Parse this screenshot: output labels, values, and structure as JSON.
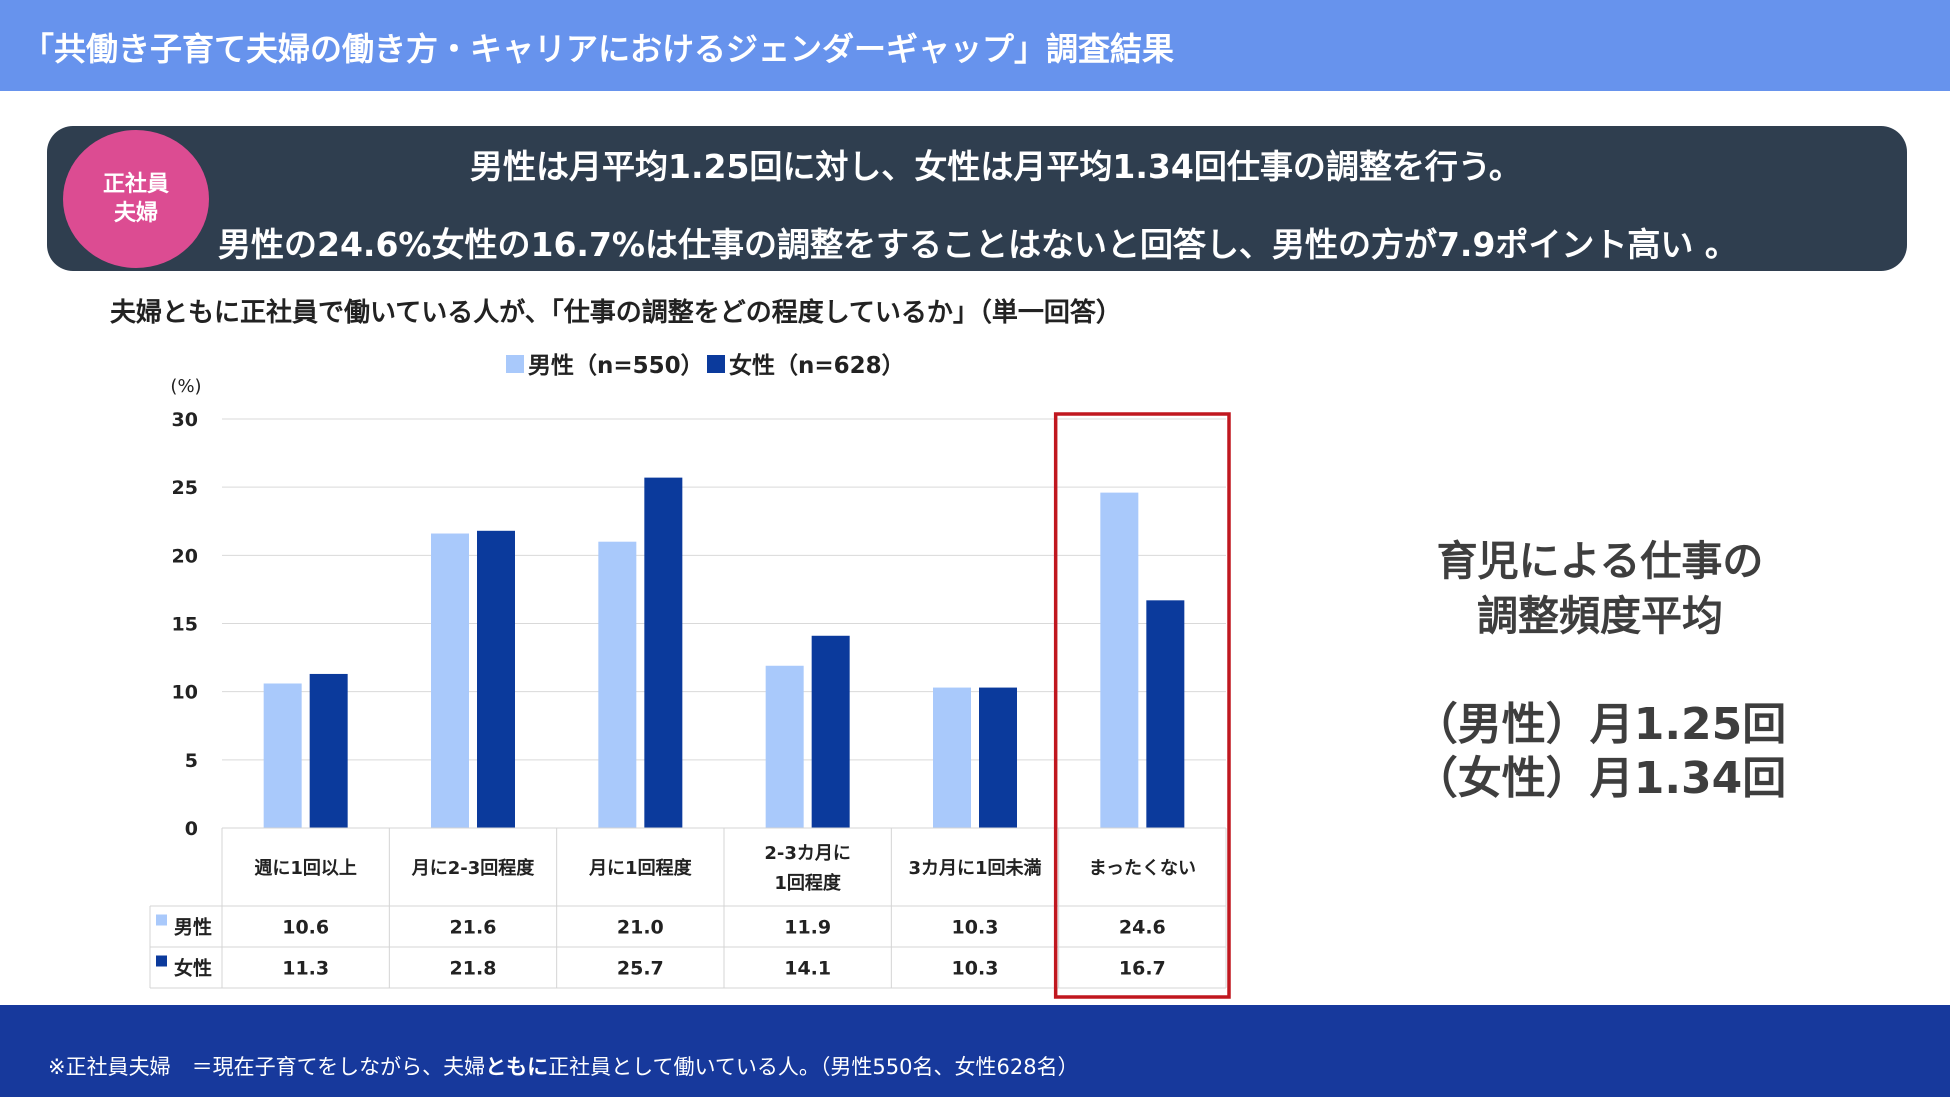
{
  "header": {
    "title": "「共働き子育て夫婦の働き方・キャリアにおけるジェンダーギャップ」調査結果"
  },
  "banner": {
    "badge_line1": "正社員",
    "badge_line2": "夫婦",
    "line1": "男性は月平均1.25回に対し、女性は月平均1.34回仕事の調整を行う。",
    "line2": "男性の24.6%女性の16.7%は仕事の調整をすることはないと回答し、男性の方が7.9ポイント高い 。"
  },
  "chart_subtitle": "夫婦ともに正社員で働いている人が、「仕事の調整をどの程度しているか」（単一回答）",
  "chart_data": {
    "type": "bar",
    "unit_label": "(%)",
    "categories": [
      "週に1回以上",
      "月に2-3回程度",
      "月に1回程度",
      "2-3カ月に\n1回程度",
      "3カ月に1回未満",
      "まったくない"
    ],
    "series": [
      {
        "name": "男性",
        "legend": "男性（n=550）",
        "color": "#a9c9fb",
        "values": [
          10.6,
          21.6,
          21.0,
          11.9,
          10.3,
          24.6
        ]
      },
      {
        "name": "女性",
        "legend": "女性（n=628）",
        "color": "#0b3a9c",
        "values": [
          11.3,
          21.8,
          25.7,
          14.1,
          10.3,
          16.7
        ]
      }
    ],
    "value_labels": [
      [
        "10.6",
        "21.6",
        "21.0",
        "11.9",
        "10.3",
        "24.6"
      ],
      [
        "11.3",
        "21.8",
        "25.7",
        "14.1",
        "10.3",
        "16.7"
      ]
    ],
    "ylim": [
      0,
      30
    ],
    "yticks": [
      0,
      5,
      10,
      15,
      20,
      25,
      30
    ],
    "grid": true,
    "data_table": true,
    "highlighted_category": "まったくない",
    "highlight_color": "#c0171f"
  },
  "side_panel": {
    "heading_line1": "育児による仕事の",
    "heading_line2": "調整頻度平均",
    "male": "（男性）月1.25回",
    "female": "（女性）月1.34回"
  },
  "footer": {
    "note_a": "※正社員夫婦　＝現在子育てをしながら、夫婦",
    "note_b": "ともに",
    "note_c": "正社員として働いている人。（男性550名、女性628名）"
  }
}
